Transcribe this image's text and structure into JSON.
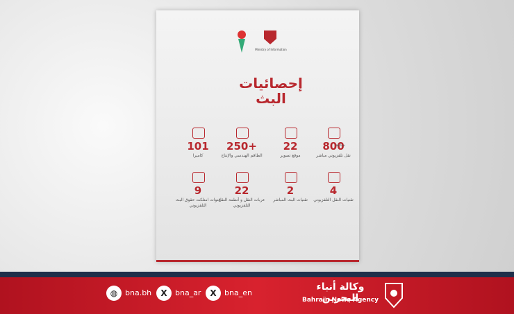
{
  "header": {
    "ministry": "Ministry of Information"
  },
  "title": {
    "line1": "إحصائيات",
    "line2": "البث"
  },
  "stats": [
    {
      "value": 800,
      "unit": "ساعة",
      "label": "نقل تلفزيوني مباشر"
    },
    {
      "value": 22,
      "label": "موقع تصوير"
    },
    {
      "value": "250+",
      "label": "الطاقم الهندسي والإنتاج"
    },
    {
      "value": 101,
      "label": "كاميرا"
    },
    {
      "value": 4,
      "label": "تقنيات النقل التلفزيوني"
    },
    {
      "value": 2,
      "label": "تقنيات البث المباشر"
    },
    {
      "value": 22,
      "label": "عربات النقل و أنظمة النقل التلفزيوني"
    },
    {
      "value": 9,
      "label": "قنوات امتلكت حقوق البث التلفزيوني"
    }
  ],
  "footer": {
    "handles": [
      "bna.bh",
      "bna_ar",
      "bna_en"
    ],
    "agency_ar": "وكالة أنباء البحرين",
    "agency_en": "Bahrain News Agency"
  }
}
